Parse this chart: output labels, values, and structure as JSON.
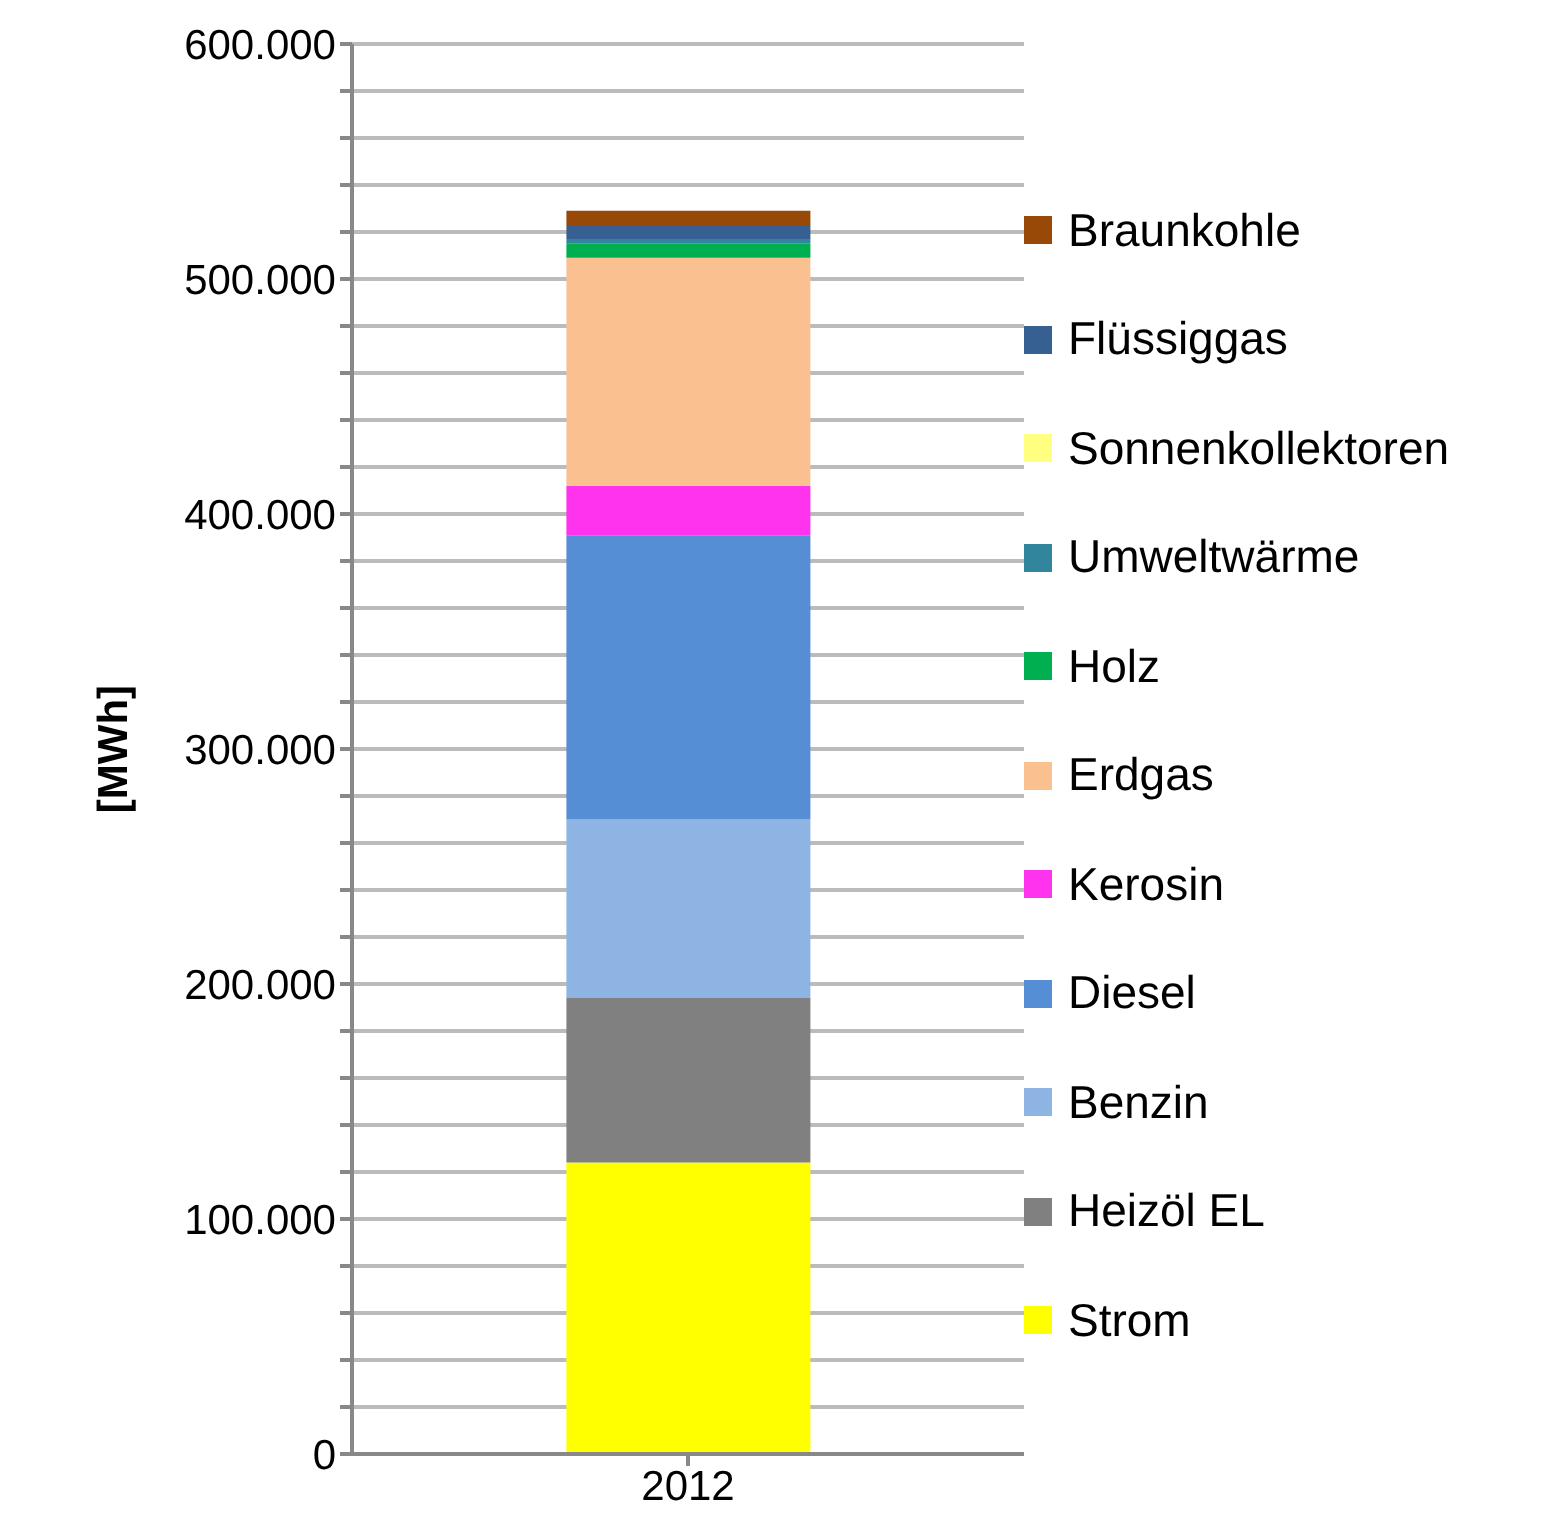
{
  "chart_data": {
    "type": "bar",
    "ylabel": "[MWh]",
    "categories": [
      "2012"
    ],
    "stacked": true,
    "series": [
      {
        "name": "Strom",
        "color": "#ffff00",
        "values": [
          124000
        ]
      },
      {
        "name": "Heizöl EL",
        "color": "#808080",
        "values": [
          70000
        ]
      },
      {
        "name": "Benzin",
        "color": "#8eb4e3",
        "values": [
          76000
        ]
      },
      {
        "name": "Diesel",
        "color": "#558ed5",
        "values": [
          121000
        ]
      },
      {
        "name": "Kerosin",
        "color": "#ff33ee",
        "values": [
          21000
        ]
      },
      {
        "name": "Erdgas",
        "color": "#fac090",
        "values": [
          97000
        ]
      },
      {
        "name": "Holz",
        "color": "#00b050",
        "values": [
          6000
        ]
      },
      {
        "name": "Umweltwärme",
        "color": "#31859c",
        "values": [
          2000
        ]
      },
      {
        "name": "Sonnenkollektoren",
        "color": "#ffff80",
        "values": [
          null
        ]
      },
      {
        "name": "Flüssiggas",
        "color": "#376092",
        "values": [
          6000
        ]
      },
      {
        "name": "Braunkohle",
        "color": "#984807",
        "values": [
          6000
        ]
      }
    ],
    "ylim": [
      0,
      600000
    ],
    "yticks": [
      {
        "value": 0,
        "label": "0"
      },
      {
        "value": 20000,
        "label": null
      },
      {
        "value": 40000,
        "label": null
      },
      {
        "value": 60000,
        "label": null
      },
      {
        "value": 80000,
        "label": null
      },
      {
        "value": 100000,
        "label": "100.000"
      },
      {
        "value": 120000,
        "label": null
      },
      {
        "value": 140000,
        "label": null
      },
      {
        "value": 160000,
        "label": null
      },
      {
        "value": 180000,
        "label": null
      },
      {
        "value": 200000,
        "label": "200.000"
      },
      {
        "value": 220000,
        "label": null
      },
      {
        "value": 240000,
        "label": null
      },
      {
        "value": 260000,
        "label": null
      },
      {
        "value": 280000,
        "label": null
      },
      {
        "value": 300000,
        "label": "300.000"
      },
      {
        "value": 320000,
        "label": null
      },
      {
        "value": 340000,
        "label": null
      },
      {
        "value": 360000,
        "label": null
      },
      {
        "value": 380000,
        "label": null
      },
      {
        "value": 400000,
        "label": "400.000"
      },
      {
        "value": 420000,
        "label": null
      },
      {
        "value": 440000,
        "label": null
      },
      {
        "value": 460000,
        "label": null
      },
      {
        "value": 480000,
        "label": null
      },
      {
        "value": 500000,
        "label": "500.000"
      },
      {
        "value": 520000,
        "label": null
      },
      {
        "value": 540000,
        "label": null
      },
      {
        "value": 560000,
        "label": null
      },
      {
        "value": 580000,
        "label": null
      },
      {
        "value": 600000,
        "label": "600.000"
      }
    ],
    "grid": "y",
    "legend": "right"
  }
}
